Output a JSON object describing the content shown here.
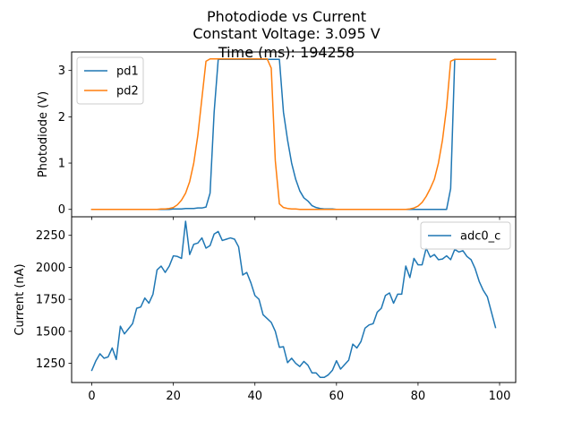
{
  "title_lines": [
    "Photodiode vs Current",
    "Constant Voltage: 3.095 V",
    "Time (ms): 194258"
  ],
  "chart_data": [
    {
      "type": "line",
      "ylabel": "Photodiode (V)",
      "xlim": [
        -4.95,
        103.95
      ],
      "ylim": [
        -0.16,
        3.4
      ],
      "yticks": [
        0,
        1,
        2,
        3
      ],
      "xticks": [
        0,
        20,
        40,
        60,
        80,
        100
      ],
      "show_x_ticklabels": false,
      "legend": "top-left",
      "x": [
        0,
        1,
        2,
        3,
        4,
        5,
        6,
        7,
        8,
        9,
        10,
        11,
        12,
        13,
        14,
        15,
        16,
        17,
        18,
        19,
        20,
        21,
        22,
        23,
        24,
        25,
        26,
        27,
        28,
        29,
        30,
        31,
        32,
        33,
        34,
        35,
        36,
        37,
        38,
        39,
        40,
        41,
        42,
        43,
        44,
        45,
        46,
        47,
        48,
        49,
        50,
        51,
        52,
        53,
        54,
        55,
        56,
        57,
        58,
        59,
        60,
        61,
        62,
        63,
        64,
        65,
        66,
        67,
        68,
        69,
        70,
        71,
        72,
        73,
        74,
        75,
        76,
        77,
        78,
        79,
        80,
        81,
        82,
        83,
        84,
        85,
        86,
        87,
        88,
        89,
        90,
        91,
        92,
        93,
        94,
        95,
        96,
        97,
        98,
        99
      ],
      "series": [
        {
          "name": "pd1",
          "color": "#1f77b4",
          "values": [
            0.0,
            0.0,
            0.0,
            0.0,
            0.0,
            0.0,
            0.0,
            0.0,
            0.0,
            0.0,
            0.0,
            0.0,
            0.0,
            0.0,
            0.0,
            0.0,
            0.0,
            0.0,
            0.0,
            0.0,
            0.01,
            0.01,
            0.01,
            0.02,
            0.02,
            0.02,
            0.03,
            0.03,
            0.05,
            0.35,
            2.1,
            3.24,
            3.24,
            3.24,
            3.24,
            3.24,
            3.24,
            3.24,
            3.24,
            3.24,
            3.24,
            3.24,
            3.24,
            3.24,
            3.24,
            3.24,
            3.24,
            2.1,
            1.5,
            1.0,
            0.65,
            0.4,
            0.25,
            0.18,
            0.08,
            0.04,
            0.02,
            0.01,
            0.01,
            0.01,
            0.0,
            0.0,
            0.0,
            0.0,
            0.0,
            0.0,
            0.0,
            0.0,
            0.0,
            0.0,
            0.0,
            0.0,
            0.0,
            0.0,
            0.0,
            0.0,
            0.0,
            0.0,
            0.0,
            0.0,
            0.0,
            0.0,
            0.0,
            0.0,
            0.0,
            0.0,
            0.0,
            0.0,
            0.45,
            3.24,
            3.24,
            3.24,
            3.24,
            3.24,
            3.24,
            3.24,
            3.24,
            3.24,
            3.24,
            3.24
          ]
        },
        {
          "name": "pd2",
          "color": "#ff7f0e",
          "values": [
            0.0,
            0.0,
            0.0,
            0.0,
            0.0,
            0.0,
            0.0,
            0.0,
            0.0,
            0.0,
            0.0,
            0.0,
            0.0,
            0.0,
            0.0,
            0.0,
            0.0,
            0.01,
            0.01,
            0.02,
            0.04,
            0.1,
            0.2,
            0.35,
            0.6,
            1.0,
            1.6,
            2.4,
            3.2,
            3.25,
            3.25,
            3.25,
            3.25,
            3.25,
            3.25,
            3.25,
            3.25,
            3.25,
            3.25,
            3.25,
            3.25,
            3.25,
            3.25,
            3.25,
            3.05,
            1.05,
            0.12,
            0.04,
            0.02,
            0.01,
            0.01,
            0.0,
            0.0,
            0.0,
            0.0,
            0.0,
            0.0,
            0.0,
            0.0,
            0.0,
            0.0,
            0.0,
            0.0,
            0.0,
            0.0,
            0.0,
            0.0,
            0.0,
            0.0,
            0.0,
            0.0,
            0.0,
            0.0,
            0.0,
            0.0,
            0.0,
            0.0,
            0.0,
            0.01,
            0.03,
            0.07,
            0.15,
            0.28,
            0.45,
            0.65,
            1.0,
            1.5,
            2.2,
            3.2,
            3.24,
            3.24,
            3.24,
            3.24,
            3.24,
            3.24,
            3.24,
            3.24,
            3.24,
            3.24,
            3.24
          ]
        }
      ]
    },
    {
      "type": "line",
      "ylabel": "Current (nA)",
      "xlim": [
        -4.95,
        103.95
      ],
      "ylim": [
        1100,
        2395
      ],
      "yticks": [
        1250,
        1500,
        1750,
        2000,
        2250
      ],
      "xticks": [
        0,
        20,
        40,
        60,
        80,
        100
      ],
      "show_x_ticklabels": true,
      "legend": "top-right",
      "x": [
        0,
        1,
        2,
        3,
        4,
        5,
        6,
        7,
        8,
        9,
        10,
        11,
        12,
        13,
        14,
        15,
        16,
        17,
        18,
        19,
        20,
        21,
        22,
        23,
        24,
        25,
        26,
        27,
        28,
        29,
        30,
        31,
        32,
        33,
        34,
        35,
        36,
        37,
        38,
        39,
        40,
        41,
        42,
        43,
        44,
        45,
        46,
        47,
        48,
        49,
        50,
        51,
        52,
        53,
        54,
        55,
        56,
        57,
        58,
        59,
        60,
        61,
        62,
        63,
        64,
        65,
        66,
        67,
        68,
        69,
        70,
        71,
        72,
        73,
        74,
        75,
        76,
        77,
        78,
        79,
        80,
        81,
        82,
        83,
        84,
        85,
        86,
        87,
        88,
        89,
        90,
        91,
        92,
        93,
        94,
        95,
        96,
        97,
        98,
        99
      ],
      "series": [
        {
          "name": "adc0_c",
          "color": "#1f77b4",
          "values": [
            1195,
            1270,
            1325,
            1290,
            1300,
            1370,
            1280,
            1540,
            1480,
            1520,
            1560,
            1680,
            1690,
            1760,
            1720,
            1790,
            1980,
            2010,
            1960,
            2010,
            2090,
            2085,
            2070,
            2360,
            2100,
            2180,
            2190,
            2230,
            2150,
            2170,
            2260,
            2280,
            2210,
            2220,
            2230,
            2220,
            2160,
            1940,
            1960,
            1880,
            1780,
            1750,
            1630,
            1600,
            1570,
            1500,
            1375,
            1380,
            1255,
            1290,
            1250,
            1225,
            1265,
            1235,
            1175,
            1175,
            1140,
            1140,
            1160,
            1195,
            1270,
            1205,
            1240,
            1275,
            1400,
            1370,
            1420,
            1525,
            1550,
            1560,
            1650,
            1680,
            1780,
            1800,
            1720,
            1790,
            1790,
            2010,
            1920,
            2070,
            2020,
            2020,
            2150,
            2080,
            2100,
            2060,
            2065,
            2090,
            2060,
            2140,
            2120,
            2130,
            2085,
            2060,
            1990,
            1890,
            1820,
            1770,
            1650,
            1530
          ]
        }
      ]
    }
  ]
}
